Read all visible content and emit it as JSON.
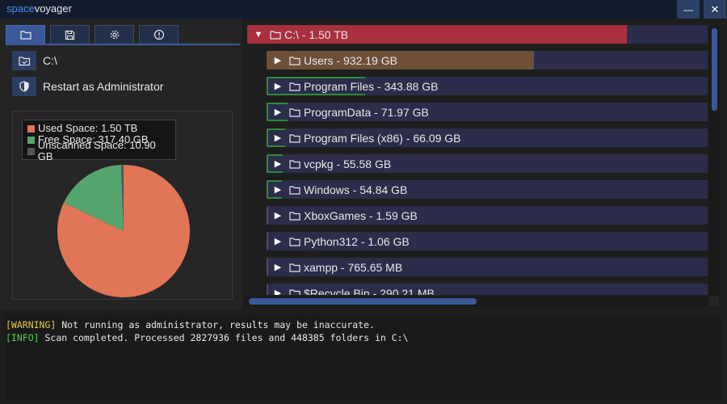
{
  "app": {
    "title_part1": "space",
    "title_part2": "voyager",
    "minimize_glyph": "—",
    "close_glyph": "✕"
  },
  "tabs": [
    {
      "icon": "folder-icon",
      "active": true
    },
    {
      "icon": "save-icon",
      "active": false
    },
    {
      "icon": "gear-icon",
      "active": false
    },
    {
      "icon": "info-icon",
      "active": false
    }
  ],
  "actions": {
    "drive_label": "C:\\",
    "restart_label": "Restart as Administrator"
  },
  "chart_data": {
    "type": "pie",
    "legend_position": "top-left",
    "slices": [
      {
        "label": "Used Space: 1.50 TB",
        "value": 1500,
        "color": "#e07558"
      },
      {
        "label": "Free Space: 317.40 GB",
        "value": 317.4,
        "color": "#56a46d"
      },
      {
        "label": "Unscanned Space: 10.90 GB",
        "value": 10.9,
        "color": "#55555a"
      }
    ]
  },
  "tree": {
    "root": {
      "label": "C:\\ - 1.50 TB",
      "expanded_glyph": "▼",
      "fraction": 1.0,
      "color": "#a8303e"
    },
    "children": [
      {
        "label": "Users - 932.19 GB",
        "fraction": 0.6214,
        "color": "#6e5038"
      },
      {
        "label": "Program Files - 343.88 GB",
        "fraction": 0.2293,
        "color": "#2e8a3e"
      },
      {
        "label": "ProgramData - 71.97 GB",
        "fraction": 0.048,
        "color": "#2e8a3e"
      },
      {
        "label": "Program Files (x86) - 66.09 GB",
        "fraction": 0.0441,
        "color": "#2e8a3e"
      },
      {
        "label": "vcpkg - 55.58 GB",
        "fraction": 0.0371,
        "color": "#2e8a3e"
      },
      {
        "label": "Windows - 54.84 GB",
        "fraction": 0.0366,
        "color": "#2e8a3e"
      },
      {
        "label": "XboxGames - 1.59 GB",
        "fraction": 0.001,
        "color": "#3a3c5a"
      },
      {
        "label": "Python312 - 1.06 GB",
        "fraction": 0.0007,
        "color": "#3a3c5a"
      },
      {
        "label": "xampp - 765.65 MB",
        "fraction": 0.0005,
        "color": "#3a3c5a"
      },
      {
        "label": "$Recycle.Bin - 290.21 MB",
        "fraction": 0.0002,
        "color": "#3a3c5a"
      }
    ],
    "collapsed_glyph": "▶"
  },
  "log": [
    {
      "tag": "[WARNING]",
      "text": " Not running as administrator, results may be inaccurate.",
      "level": "warn"
    },
    {
      "tag": "[INFO]",
      "text": " Scan completed. Processed 2827936 files and 448385 folders in C:\\",
      "level": "info"
    }
  ]
}
